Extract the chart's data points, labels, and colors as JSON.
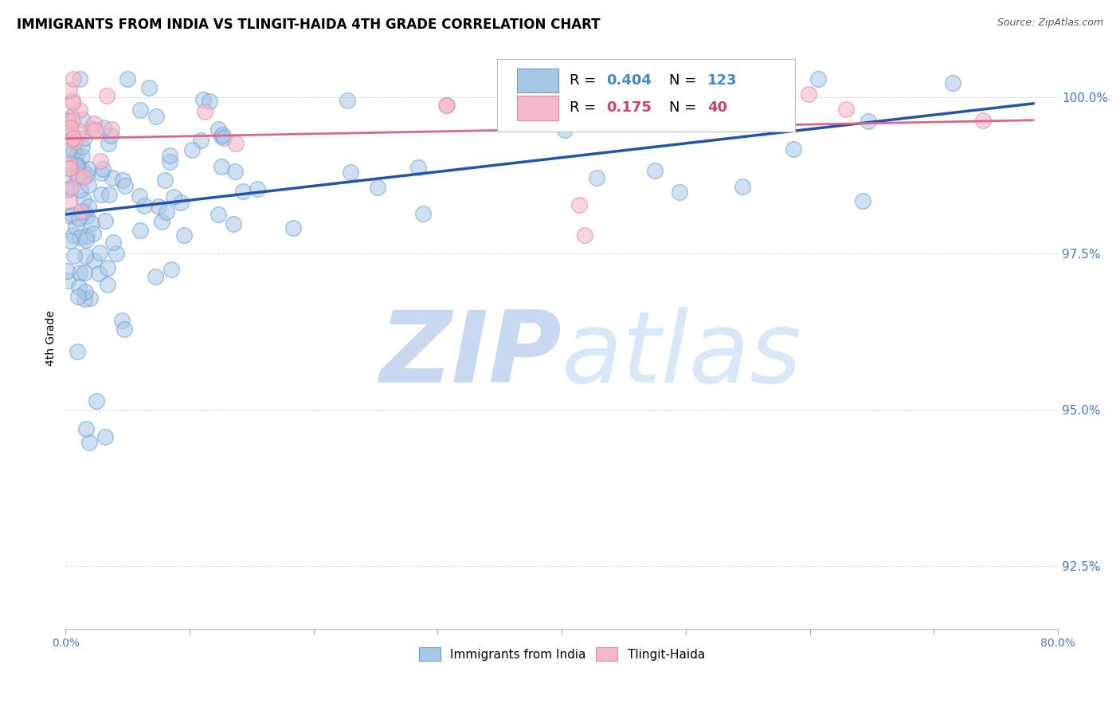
{
  "title": "IMMIGRANTS FROM INDIA VS TLINGIT-HAIDA 4TH GRADE CORRELATION CHART",
  "source": "Source: ZipAtlas.com",
  "ylabel": "4th Grade",
  "yticks": [
    92.5,
    95.0,
    97.5,
    100.0
  ],
  "ytick_labels": [
    "92.5%",
    "95.0%",
    "97.5%",
    "100.0%"
  ],
  "watermark": "ZIPatlas",
  "blue_color_fill": "#a8c8e8",
  "blue_color_edge": "#6699cc",
  "pink_color_fill": "#f4b8c8",
  "pink_color_edge": "#dd88aa",
  "blue_line_color": "#2255aa",
  "pink_line_color": "#dd6688",
  "legend_blue_label": "Immigrants from India",
  "legend_pink_label": "Tlingit-Haida",
  "xmin": 0.0,
  "xmax": 0.8,
  "ymin": 91.5,
  "ymax": 100.8,
  "grid_color": "#cccccc",
  "watermark_color": "#c8d8ee",
  "title_fontsize": 12,
  "tick_color_blue": "#4477cc",
  "tick_fontsize": 10,
  "blue_R": "0.404",
  "blue_N": "123",
  "pink_R": "0.175",
  "pink_N": "40",
  "blue_legend_color": "#4488cc",
  "pink_legend_color": "#cc4466"
}
